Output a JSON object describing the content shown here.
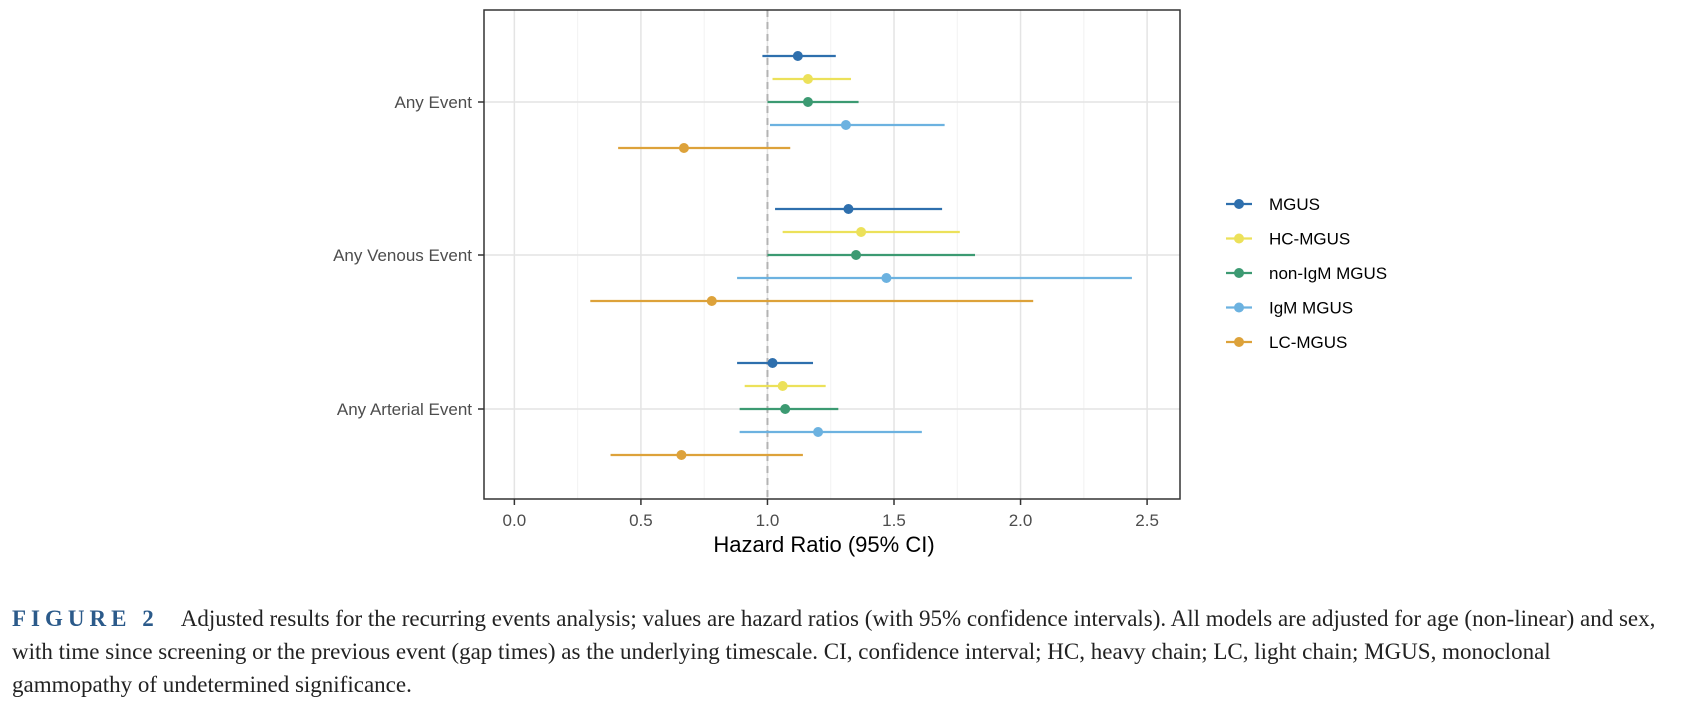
{
  "chart_data": {
    "type": "forest",
    "xlabel": "Hazard Ratio (95% CI)",
    "xlim": [
      -0.12,
      2.63
    ],
    "x_ticks": [
      0.0,
      0.5,
      1.0,
      1.5,
      2.0,
      2.5
    ],
    "x_tick_labels": [
      "0.0",
      "0.5",
      "1.0",
      "1.5",
      "2.0",
      "2.5"
    ],
    "reference_line": 1.0,
    "grid": true,
    "legend_position": "right",
    "categories": [
      "Any Event",
      "Any Venous Event",
      "Any Arterial Event"
    ],
    "series": [
      {
        "name": "MGUS",
        "color": "#2e6fad",
        "points": [
          {
            "category": "Any Event",
            "hr": 1.12,
            "lo": 0.98,
            "hi": 1.27
          },
          {
            "category": "Any Venous Event",
            "hr": 1.32,
            "lo": 1.03,
            "hi": 1.69
          },
          {
            "category": "Any Arterial Event",
            "hr": 1.02,
            "lo": 0.88,
            "hi": 1.18
          }
        ]
      },
      {
        "name": "HC-MGUS",
        "color": "#ece15a",
        "points": [
          {
            "category": "Any Event",
            "hr": 1.16,
            "lo": 1.02,
            "hi": 1.33
          },
          {
            "category": "Any Venous Event",
            "hr": 1.37,
            "lo": 1.06,
            "hi": 1.76
          },
          {
            "category": "Any Arterial Event",
            "hr": 1.06,
            "lo": 0.91,
            "hi": 1.23
          }
        ]
      },
      {
        "name": "non-IgM MGUS",
        "color": "#3c9a72",
        "points": [
          {
            "category": "Any Event",
            "hr": 1.16,
            "lo": 1.0,
            "hi": 1.36
          },
          {
            "category": "Any Venous Event",
            "hr": 1.35,
            "lo": 1.0,
            "hi": 1.82
          },
          {
            "category": "Any Arterial Event",
            "hr": 1.07,
            "lo": 0.89,
            "hi": 1.28
          }
        ]
      },
      {
        "name": "IgM MGUS",
        "color": "#6cb2e0",
        "points": [
          {
            "category": "Any Event",
            "hr": 1.31,
            "lo": 1.01,
            "hi": 1.7
          },
          {
            "category": "Any Venous Event",
            "hr": 1.47,
            "lo": 0.88,
            "hi": 2.44
          },
          {
            "category": "Any Arterial Event",
            "hr": 1.2,
            "lo": 0.89,
            "hi": 1.61
          }
        ]
      },
      {
        "name": "LC-MGUS",
        "color": "#dda23a",
        "points": [
          {
            "category": "Any Event",
            "hr": 0.67,
            "lo": 0.41,
            "hi": 1.09
          },
          {
            "category": "Any Venous Event",
            "hr": 0.78,
            "lo": 0.3,
            "hi": 2.05
          },
          {
            "category": "Any Arterial Event",
            "hr": 0.66,
            "lo": 0.38,
            "hi": 1.14
          }
        ]
      }
    ]
  },
  "caption": {
    "label": "FIGURE 2",
    "text": "Adjusted results for the recurring events analysis; values are hazard ratios (with 95% confidence intervals). All models are adjusted for age (non-linear) and sex, with time since screening or the previous event (gap times) as the underlying timescale. CI, confidence interval; HC, heavy chain; LC, light chain; MGUS, monoclonal gammopathy of undetermined significance."
  }
}
